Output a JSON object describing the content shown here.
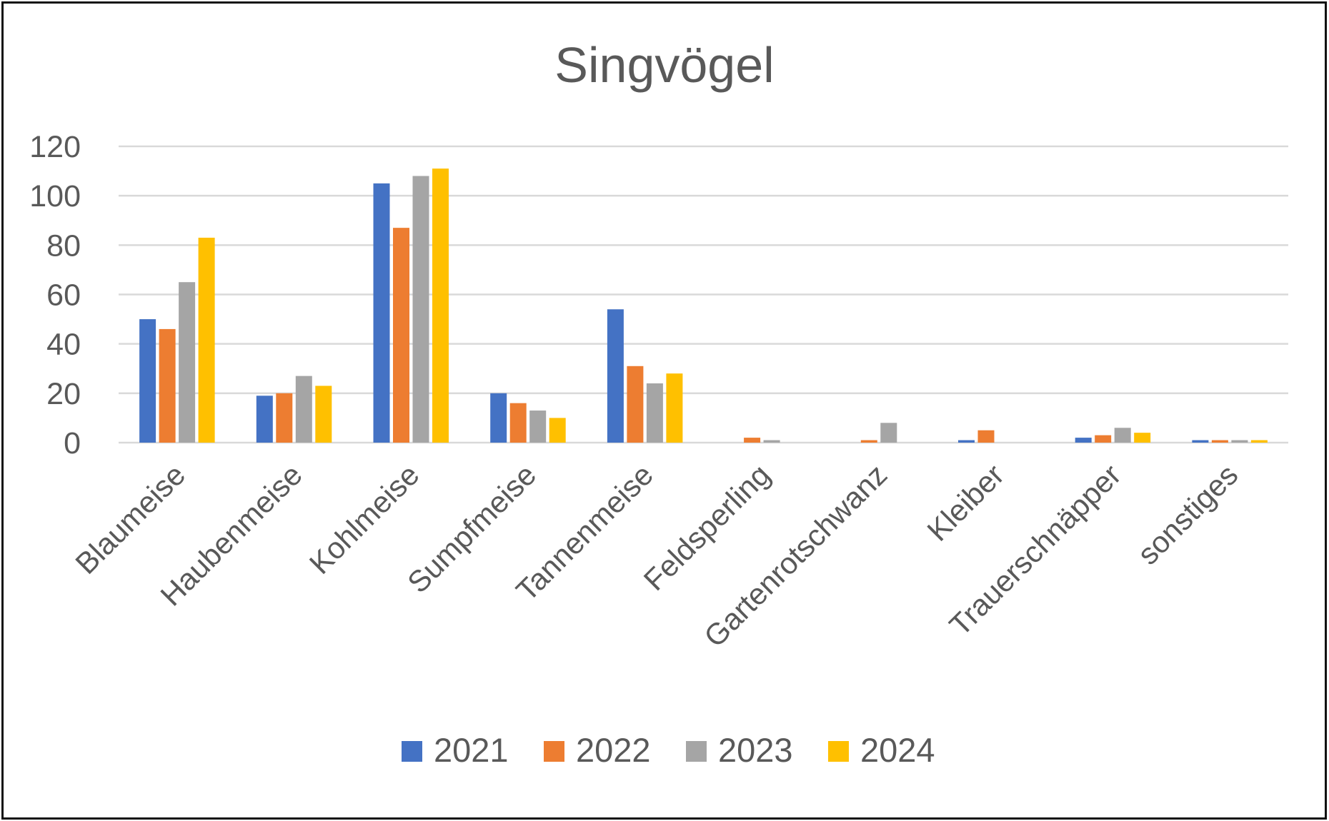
{
  "chart_data": {
    "type": "bar",
    "title": "Singvögel",
    "xlabel": "",
    "ylabel": "",
    "ylim": [
      0,
      120
    ],
    "yticks": [
      0,
      20,
      40,
      60,
      80,
      100,
      120
    ],
    "grid": true,
    "legend_position": "bottom",
    "categories": [
      "Blaumeise",
      "Haubenmeise",
      "Kohlmeise",
      "Sumpfmeise",
      "Tannenmeise",
      "Feldsperling",
      "Gartenrotschwanz",
      "Kleiber",
      "Trauerschnäpper",
      "sonstiges"
    ],
    "series": [
      {
        "name": "2021",
        "color": "#4472C4",
        "values": [
          50,
          19,
          105,
          20,
          54,
          0,
          0,
          1,
          2,
          1
        ]
      },
      {
        "name": "2022",
        "color": "#ED7D31",
        "values": [
          46,
          20,
          87,
          16,
          31,
          2,
          1,
          5,
          3,
          1
        ]
      },
      {
        "name": "2023",
        "color": "#A5A5A5",
        "values": [
          65,
          27,
          108,
          13,
          24,
          1,
          8,
          0,
          6,
          1
        ]
      },
      {
        "name": "2024",
        "color": "#FFC000",
        "values": [
          83,
          23,
          111,
          10,
          28,
          0,
          0,
          0,
          4,
          1
        ]
      }
    ]
  },
  "colors": {
    "text": "#595959",
    "gridline": "#D9D9D9",
    "border": "#111111"
  }
}
